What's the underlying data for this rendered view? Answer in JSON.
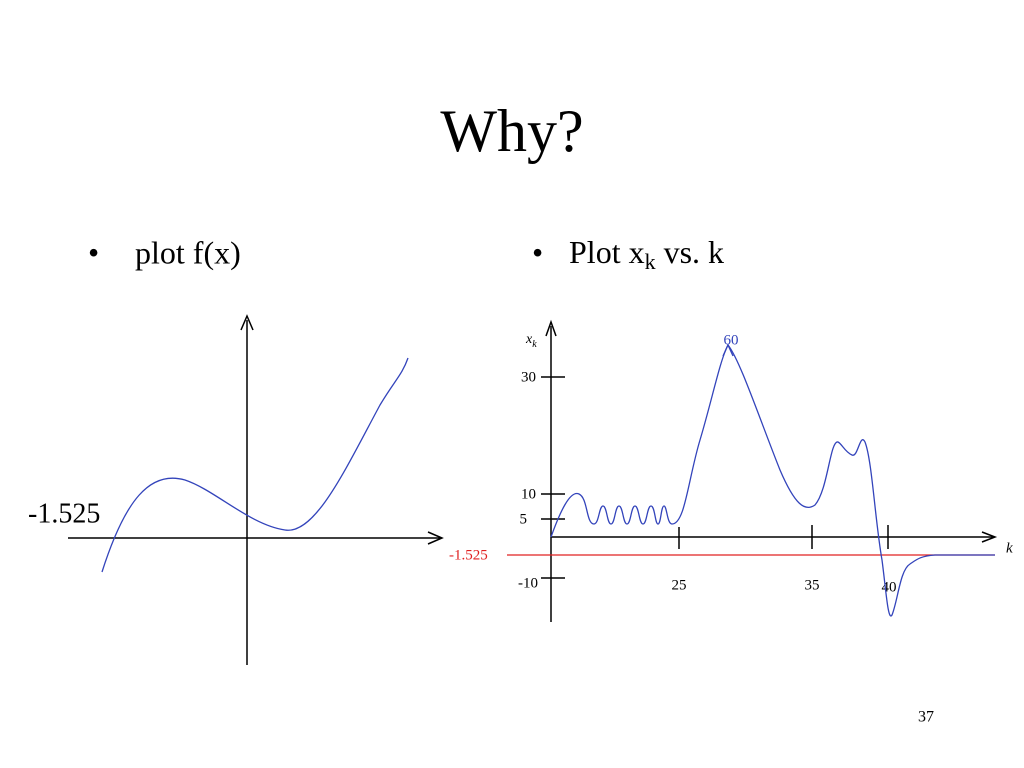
{
  "title": "Why?",
  "bullets": [
    {
      "text": "plot f(x)"
    },
    {
      "text": "Plot x",
      "sub": "k",
      "tail": "vs. k"
    }
  ],
  "left_plot": {
    "label": "-1.525"
  },
  "right_plot": {
    "y_label": "x",
    "y_label_sub": "k",
    "x_label": "k",
    "y_ticks": [
      "30",
      "10",
      "5",
      "-10"
    ],
    "x_ticks": [
      "25",
      "35",
      "40"
    ],
    "peak_label": "60",
    "line_label": "-1.525"
  },
  "page_number": "37"
}
